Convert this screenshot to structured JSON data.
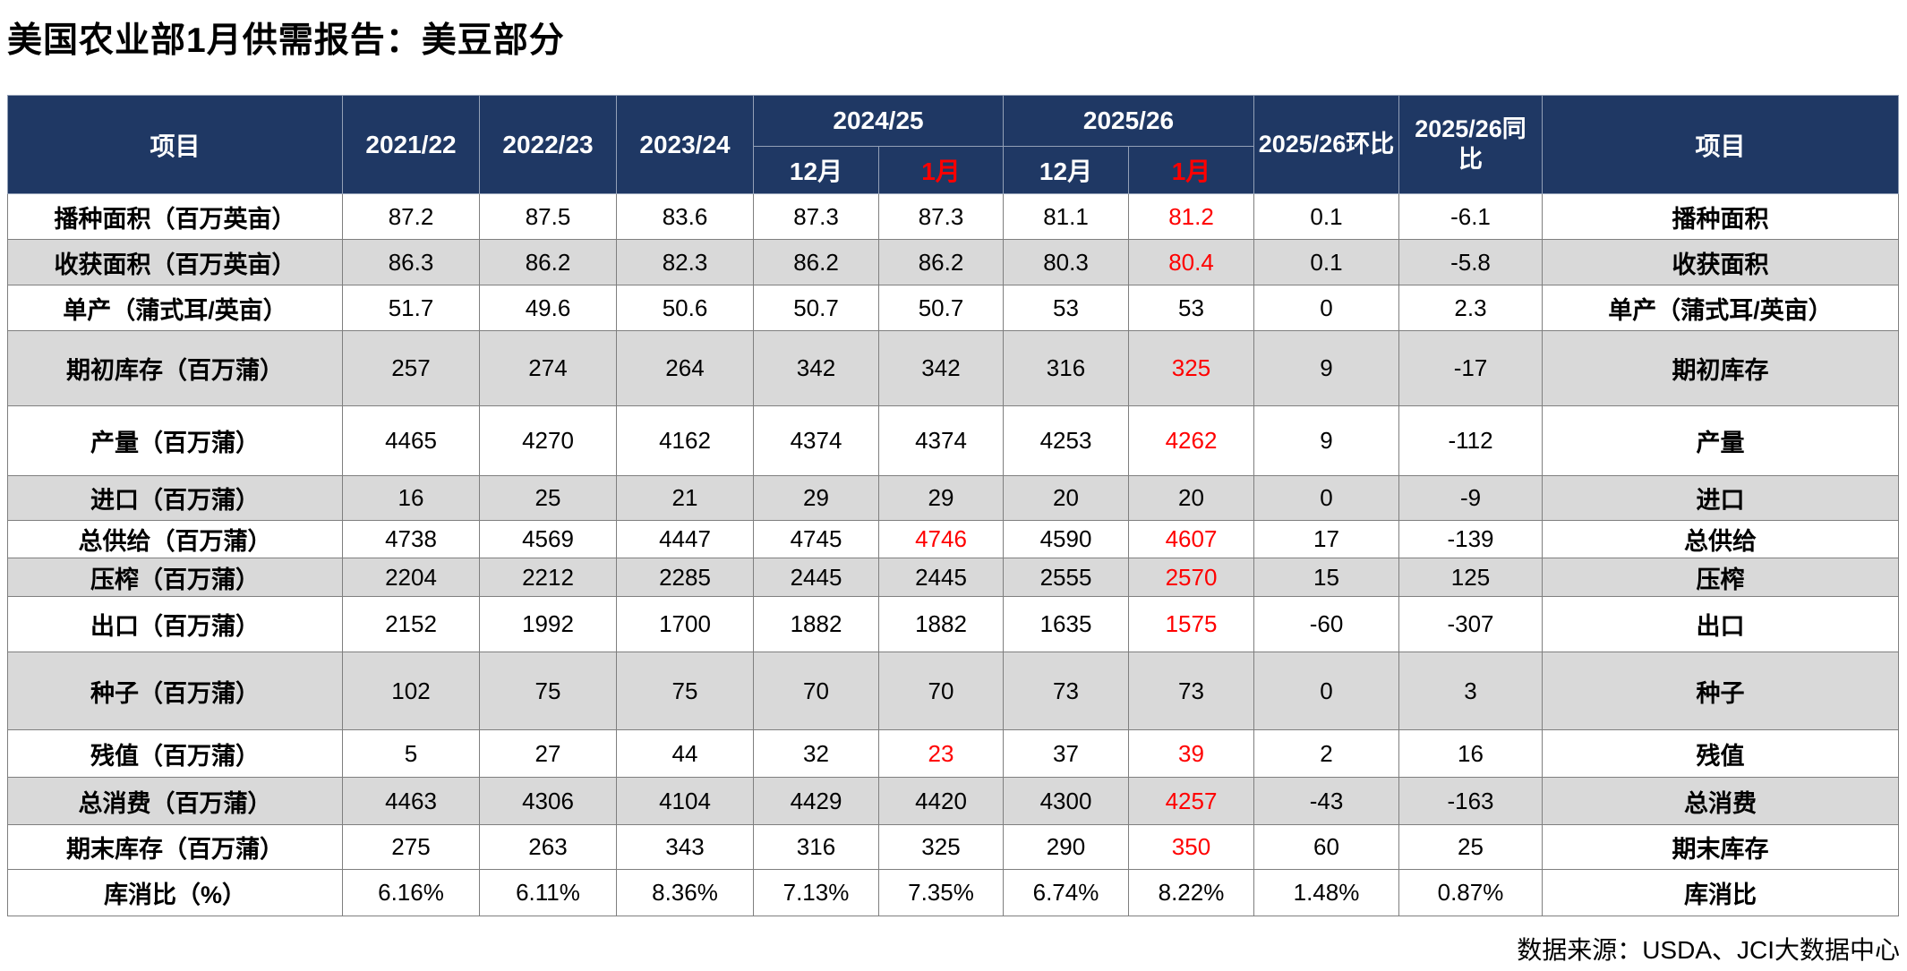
{
  "page": {
    "title": "美国农业部1月供需报告：美豆部分",
    "source": "数据来源：USDA、JCI大数据中心"
  },
  "colors": {
    "header_bg": "#1f3864",
    "header_text": "#ffffff",
    "shade_row_bg": "#d9d9d9",
    "highlight_red": "#ff0000",
    "border": "#7f7f7f"
  },
  "chart_data": {
    "type": "table",
    "title": "美国农业部1月供需报告：美豆部分",
    "header": {
      "item_left": "项目",
      "item_right": "项目",
      "years": [
        "2021/22",
        "2022/23",
        "2023/24"
      ],
      "groups": [
        {
          "label": "2024/25",
          "months": [
            "12月",
            "1月"
          ]
        },
        {
          "label": "2025/26",
          "months": [
            "12月",
            "1月"
          ]
        }
      ],
      "mom_label": "2025/26环比",
      "yoy_label": "2025/26同比"
    },
    "rows": [
      {
        "label": "播种面积（百万英亩）",
        "label_right": "播种面积",
        "values": [
          "87.2",
          "87.5",
          "83.6",
          "87.3",
          "87.3",
          "81.1",
          "81.2",
          "0.1",
          "-6.1"
        ],
        "red_value_indexes": [
          6
        ]
      },
      {
        "label": "收获面积（百万英亩）",
        "label_right": "收获面积",
        "values": [
          "86.3",
          "86.2",
          "82.3",
          "86.2",
          "86.2",
          "80.3",
          "80.4",
          "0.1",
          "-5.8"
        ],
        "red_value_indexes": [
          6
        ]
      },
      {
        "label": "单产（蒲式耳/英亩）",
        "label_right": "单产（蒲式耳/英亩）",
        "values": [
          "51.7",
          "49.6",
          "50.6",
          "50.7",
          "50.7",
          "53",
          "53",
          "0",
          "2.3"
        ],
        "red_value_indexes": []
      },
      {
        "label": "期初库存（百万蒲）",
        "label_right": "期初库存",
        "values": [
          "257",
          "274",
          "264",
          "342",
          "342",
          "316",
          "325",
          "9",
          "-17"
        ],
        "red_value_indexes": [
          6
        ]
      },
      {
        "label": "产量（百万蒲）",
        "label_right": "产量",
        "values": [
          "4465",
          "4270",
          "4162",
          "4374",
          "4374",
          "4253",
          "4262",
          "9",
          "-112"
        ],
        "red_value_indexes": [
          6
        ]
      },
      {
        "label": "进口（百万蒲）",
        "label_right": "进口",
        "values": [
          "16",
          "25",
          "21",
          "29",
          "29",
          "20",
          "20",
          "0",
          "-9"
        ],
        "red_value_indexes": []
      },
      {
        "label": "总供给（百万蒲）",
        "label_right": "总供给",
        "values": [
          "4738",
          "4569",
          "4447",
          "4745",
          "4746",
          "4590",
          "4607",
          "17",
          "-139"
        ],
        "red_value_indexes": [
          4,
          6
        ]
      },
      {
        "label": "压榨（百万蒲）",
        "label_right": "压榨",
        "values": [
          "2204",
          "2212",
          "2285",
          "2445",
          "2445",
          "2555",
          "2570",
          "15",
          "125"
        ],
        "red_value_indexes": [
          6
        ]
      },
      {
        "label": "出口（百万蒲）",
        "label_right": "出口",
        "values": [
          "2152",
          "1992",
          "1700",
          "1882",
          "1882",
          "1635",
          "1575",
          "-60",
          "-307"
        ],
        "red_value_indexes": [
          6
        ]
      },
      {
        "label": "种子（百万蒲）",
        "label_right": "种子",
        "values": [
          "102",
          "75",
          "75",
          "70",
          "70",
          "73",
          "73",
          "0",
          "3"
        ],
        "red_value_indexes": []
      },
      {
        "label": "残值（百万蒲）",
        "label_right": "残值",
        "values": [
          "5",
          "27",
          "44",
          "32",
          "23",
          "37",
          "39",
          "2",
          "16"
        ],
        "red_value_indexes": [
          4,
          6
        ]
      },
      {
        "label": "总消费（百万蒲）",
        "label_right": "总消费",
        "values": [
          "4463",
          "4306",
          "4104",
          "4429",
          "4420",
          "4300",
          "4257",
          "-43",
          "-163"
        ],
        "red_value_indexes": [
          6
        ]
      },
      {
        "label": "期末库存（百万蒲）",
        "label_right": "期末库存",
        "values": [
          "275",
          "263",
          "343",
          "316",
          "325",
          "290",
          "350",
          "60",
          "25"
        ],
        "red_value_indexes": [
          6
        ]
      },
      {
        "label": "库消比（%）",
        "label_right": "库消比",
        "values": [
          "6.16%",
          "6.11%",
          "8.36%",
          "7.13%",
          "7.35%",
          "6.74%",
          "8.22%",
          "1.48%",
          "0.87%"
        ],
        "red_value_indexes": []
      }
    ]
  }
}
